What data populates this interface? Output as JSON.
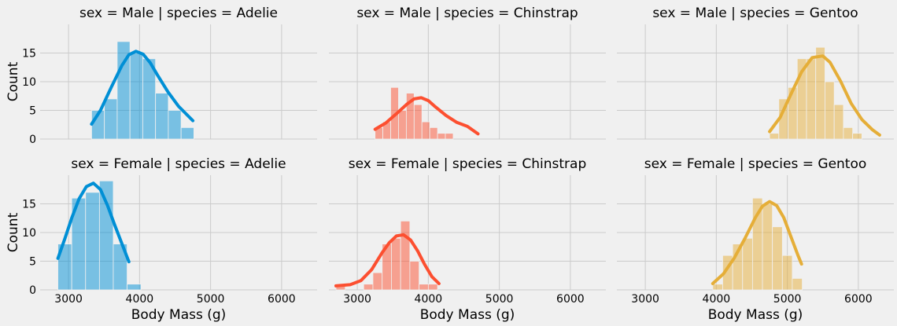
{
  "chart_data": {
    "type": "histogram",
    "style": "fivethirtyeight",
    "row_var": "sex",
    "col_var": "species",
    "xlabel": "Body Mass (g)",
    "ylabel": "Count",
    "xlim": [
      2600,
      6500
    ],
    "ylim": [
      0,
      20
    ],
    "xticks": [
      3000,
      4000,
      5000,
      6000
    ],
    "yticks": [
      0,
      5,
      10,
      15
    ],
    "kde": true,
    "grid": true,
    "panels": [
      {
        "title": "sex = Male | species = Adelie",
        "color": "#008fd5",
        "bin_start": 3325,
        "bin_width": 180,
        "counts": [
          5,
          7,
          17,
          15,
          14,
          8,
          5,
          2
        ],
        "kde_x": [
          3325,
          3450,
          3600,
          3750,
          3850,
          3950,
          4050,
          4150,
          4250,
          4400,
          4550,
          4750
        ],
        "kde_y": [
          2.6,
          5.0,
          9.0,
          12.8,
          14.7,
          15.3,
          14.8,
          13.3,
          11.2,
          8.2,
          5.7,
          3.2
        ]
      },
      {
        "title": "sex = Male | species = Chinstrap",
        "color": "#fc4f30",
        "bin_start": 3250,
        "bin_width": 110,
        "counts": [
          2,
          3,
          9,
          5,
          8,
          6,
          3,
          2,
          1,
          1
        ],
        "kde_x": [
          3250,
          3400,
          3550,
          3700,
          3800,
          3900,
          4000,
          4100,
          4250,
          4400,
          4550,
          4700
        ],
        "kde_y": [
          1.7,
          2.8,
          4.4,
          6.1,
          7.0,
          7.2,
          6.7,
          5.6,
          4.1,
          2.9,
          2.2,
          0.9
        ]
      },
      {
        "title": "sex = Male | species = Gentoo",
        "color": "#e5ae38",
        "bin_start": 4750,
        "bin_width": 130,
        "counts": [
          1,
          7,
          9,
          14,
          14,
          16,
          10,
          6,
          2,
          1
        ],
        "kde_x": [
          4750,
          4900,
          5050,
          5200,
          5350,
          5500,
          5600,
          5750,
          5900,
          6050,
          6200,
          6300
        ],
        "kde_y": [
          1.3,
          3.8,
          7.8,
          11.7,
          14.2,
          14.5,
          13.4,
          10.1,
          6.2,
          3.4,
          1.6,
          0.7
        ]
      },
      {
        "title": "sex = Female | species = Adelie",
        "color": "#008fd5",
        "bin_start": 2850,
        "bin_width": 195,
        "counts": [
          8,
          16,
          17,
          19,
          8,
          1
        ],
        "kde_x": [
          2850,
          2950,
          3050,
          3150,
          3250,
          3350,
          3450,
          3550,
          3650,
          3750,
          3850
        ],
        "kde_y": [
          5.5,
          9.0,
          12.7,
          15.9,
          18.0,
          18.6,
          17.5,
          14.7,
          11.3,
          8.1,
          4.9
        ]
      },
      {
        "title": "sex = Female | species = Chinstrap",
        "color": "#fc4f30",
        "bin_start": 2700,
        "bin_width": 130,
        "counts": [
          1,
          0,
          0,
          1,
          3,
          8,
          9,
          12,
          5,
          1,
          1
        ],
        "kde_x": [
          2700,
          2900,
          3050,
          3200,
          3350,
          3450,
          3550,
          3650,
          3750,
          3850,
          3950,
          4050,
          4150
        ],
        "kde_y": [
          0.7,
          0.9,
          1.6,
          3.5,
          6.5,
          8.2,
          9.4,
          9.6,
          8.7,
          6.8,
          4.4,
          2.3,
          1.1
        ]
      },
      {
        "title": "sex = Female | species = Gentoo",
        "color": "#e5ae38",
        "bin_start": 3950,
        "bin_width": 140,
        "counts": [
          1,
          6,
          8,
          9,
          16,
          15,
          11,
          6,
          2
        ],
        "kde_x": [
          3950,
          4100,
          4250,
          4400,
          4550,
          4650,
          4750,
          4850,
          4950,
          5050,
          5150,
          5200
        ],
        "kde_y": [
          1.1,
          2.8,
          5.5,
          8.9,
          12.6,
          14.6,
          15.4,
          14.7,
          12.6,
          9.3,
          6.0,
          4.5
        ]
      }
    ]
  }
}
